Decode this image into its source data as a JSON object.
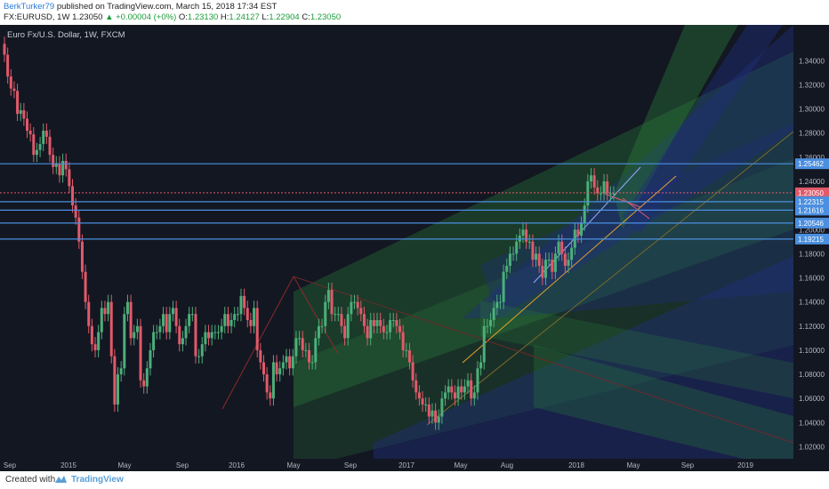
{
  "header": {
    "author": "BerkTurker79",
    "published_text": "published on TradingView.com, March 15, 2018 17:34 EST",
    "symbol": "FX:EURUSD, 1W",
    "last": "1.23050",
    "change": "+0.00004 (+0%)",
    "o_label": "O:",
    "o_value": "1.23130",
    "h_label": "H:",
    "h_value": "1.24127",
    "l_label": "L:",
    "l_value": "1.22904",
    "c_label": "C:",
    "c_value": "1.23050"
  },
  "footer": {
    "created_with": "Created with",
    "brand": "TradingView"
  },
  "colors": {
    "background": "#131722",
    "bull": "#4caf7a",
    "bear": "#e15a6a",
    "hline": "#4a8fe0",
    "price_label": "#e15a6a"
  },
  "chart_data": {
    "type": "candlestick",
    "title": "Euro Fx/U.S. Dollar, 1W, FXCM",
    "x_ticks": [
      "Sep",
      "2015",
      "May",
      "Sep",
      "2016",
      "May",
      "Sep",
      "2017",
      "May",
      "Aug",
      "2018",
      "May",
      "Sep",
      "2019"
    ],
    "y_ticks": [
      "1.34000",
      "1.32000",
      "1.30000",
      "1.28000",
      "1.26000",
      "1.24000",
      "1.22000",
      "1.20000",
      "1.18000",
      "1.16000",
      "1.14000",
      "1.12000",
      "1.10000",
      "1.08000",
      "1.06000",
      "1.04000",
      "1.02000"
    ],
    "ylim": [
      1.01,
      1.355
    ],
    "price_labels": [
      {
        "label": "1.25462",
        "value": 1.25462
      },
      {
        "label": "1.23050",
        "value": 1.2305,
        "current": true
      },
      {
        "label": "1.22315",
        "value": 1.22315
      },
      {
        "label": "1.21616",
        "value": 1.21616
      },
      {
        "label": "1.20546",
        "value": 1.20546
      },
      {
        "label": "1.19215",
        "value": 1.19215
      }
    ],
    "series": [
      {
        "close": [
          1.345,
          1.327,
          1.317,
          1.315,
          1.296,
          1.299,
          1.292,
          1.282,
          1.279,
          1.262,
          1.266,
          1.271,
          1.282,
          1.277,
          1.262,
          1.252,
          1.255,
          1.245,
          1.257,
          1.25,
          1.236,
          1.22,
          1.21,
          1.19,
          1.165,
          1.14,
          1.12,
          1.105,
          1.1,
          1.115,
          1.135,
          1.13,
          1.14,
          1.095,
          1.055,
          1.08,
          1.085,
          1.13,
          1.14,
          1.11,
          1.115,
          1.12,
          1.075,
          1.07,
          1.085,
          1.1,
          1.115,
          1.115,
          1.12,
          1.13,
          1.115,
          1.13,
          1.135,
          1.12,
          1.105,
          1.11,
          1.12,
          1.13,
          1.13,
          1.095,
          1.095,
          1.105,
          1.115,
          1.11,
          1.115,
          1.115,
          1.115,
          1.12,
          1.13,
          1.12,
          1.125,
          1.13,
          1.13,
          1.145,
          1.135,
          1.125,
          1.12,
          1.135,
          1.1,
          1.09,
          1.08,
          1.065,
          1.06,
          1.09,
          1.08,
          1.085,
          1.09,
          1.095,
          1.085,
          1.095,
          1.11,
          1.11,
          1.1,
          1.1,
          1.09,
          1.09,
          1.11,
          1.12,
          1.12,
          1.14,
          1.15,
          1.13,
          1.13,
          1.13,
          1.12,
          1.11,
          1.13,
          1.14,
          1.14,
          1.135,
          1.13,
          1.12,
          1.11,
          1.125,
          1.12,
          1.125,
          1.12,
          1.115,
          1.115,
          1.125,
          1.125,
          1.12,
          1.115,
          1.1,
          1.1,
          1.09,
          1.075,
          1.065,
          1.06,
          1.055,
          1.055,
          1.045,
          1.05,
          1.04,
          1.045,
          1.06,
          1.065,
          1.07,
          1.065,
          1.06,
          1.07,
          1.065,
          1.07,
          1.075,
          1.06,
          1.065,
          1.085,
          1.09,
          1.12,
          1.12,
          1.125,
          1.135,
          1.14,
          1.14,
          1.165,
          1.17,
          1.18,
          1.18,
          1.19,
          1.195,
          1.2,
          1.19,
          1.19,
          1.175,
          1.18,
          1.17,
          1.16,
          1.175,
          1.175,
          1.165,
          1.18,
          1.19,
          1.18,
          1.17,
          1.175,
          1.185,
          1.2,
          1.195,
          1.205,
          1.22,
          1.24,
          1.245,
          1.235,
          1.23,
          1.23,
          1.24,
          1.23,
          1.23,
          1.23
        ],
        "open": [
          1.354,
          1.345,
          1.327,
          1.317,
          1.315,
          1.296,
          1.299,
          1.292,
          1.282,
          1.279,
          1.262,
          1.266,
          1.271,
          1.282,
          1.277,
          1.262,
          1.252,
          1.255,
          1.245,
          1.257,
          1.25,
          1.236,
          1.22,
          1.21,
          1.19,
          1.165,
          1.14,
          1.12,
          1.105,
          1.1,
          1.115,
          1.135,
          1.13,
          1.14,
          1.095,
          1.055,
          1.08,
          1.085,
          1.13,
          1.14,
          1.11,
          1.115,
          1.12,
          1.075,
          1.07,
          1.085,
          1.1,
          1.115,
          1.115,
          1.12,
          1.13,
          1.115,
          1.13,
          1.135,
          1.12,
          1.105,
          1.11,
          1.12,
          1.13,
          1.13,
          1.095,
          1.095,
          1.105,
          1.115,
          1.11,
          1.115,
          1.115,
          1.115,
          1.12,
          1.13,
          1.12,
          1.125,
          1.13,
          1.13,
          1.145,
          1.135,
          1.125,
          1.12,
          1.135,
          1.1,
          1.09,
          1.08,
          1.065,
          1.06,
          1.09,
          1.08,
          1.085,
          1.09,
          1.095,
          1.085,
          1.095,
          1.11,
          1.11,
          1.1,
          1.1,
          1.09,
          1.09,
          1.11,
          1.12,
          1.12,
          1.14,
          1.15,
          1.13,
          1.13,
          1.13,
          1.12,
          1.11,
          1.13,
          1.14,
          1.14,
          1.135,
          1.13,
          1.12,
          1.11,
          1.125,
          1.12,
          1.125,
          1.12,
          1.115,
          1.115,
          1.125,
          1.125,
          1.12,
          1.115,
          1.1,
          1.1,
          1.09,
          1.075,
          1.065,
          1.06,
          1.055,
          1.055,
          1.045,
          1.05,
          1.04,
          1.045,
          1.06,
          1.065,
          1.07,
          1.065,
          1.06,
          1.07,
          1.065,
          1.07,
          1.075,
          1.06,
          1.065,
          1.085,
          1.09,
          1.12,
          1.12,
          1.125,
          1.135,
          1.14,
          1.14,
          1.165,
          1.17,
          1.18,
          1.18,
          1.19,
          1.195,
          1.2,
          1.19,
          1.19,
          1.175,
          1.18,
          1.17,
          1.16,
          1.175,
          1.175,
          1.165,
          1.18,
          1.19,
          1.18,
          1.17,
          1.175,
          1.185,
          1.2,
          1.195,
          1.205,
          1.22,
          1.24,
          1.245,
          1.235,
          1.23,
          1.23,
          1.24,
          1.23,
          1.23
        ]
      }
    ]
  }
}
